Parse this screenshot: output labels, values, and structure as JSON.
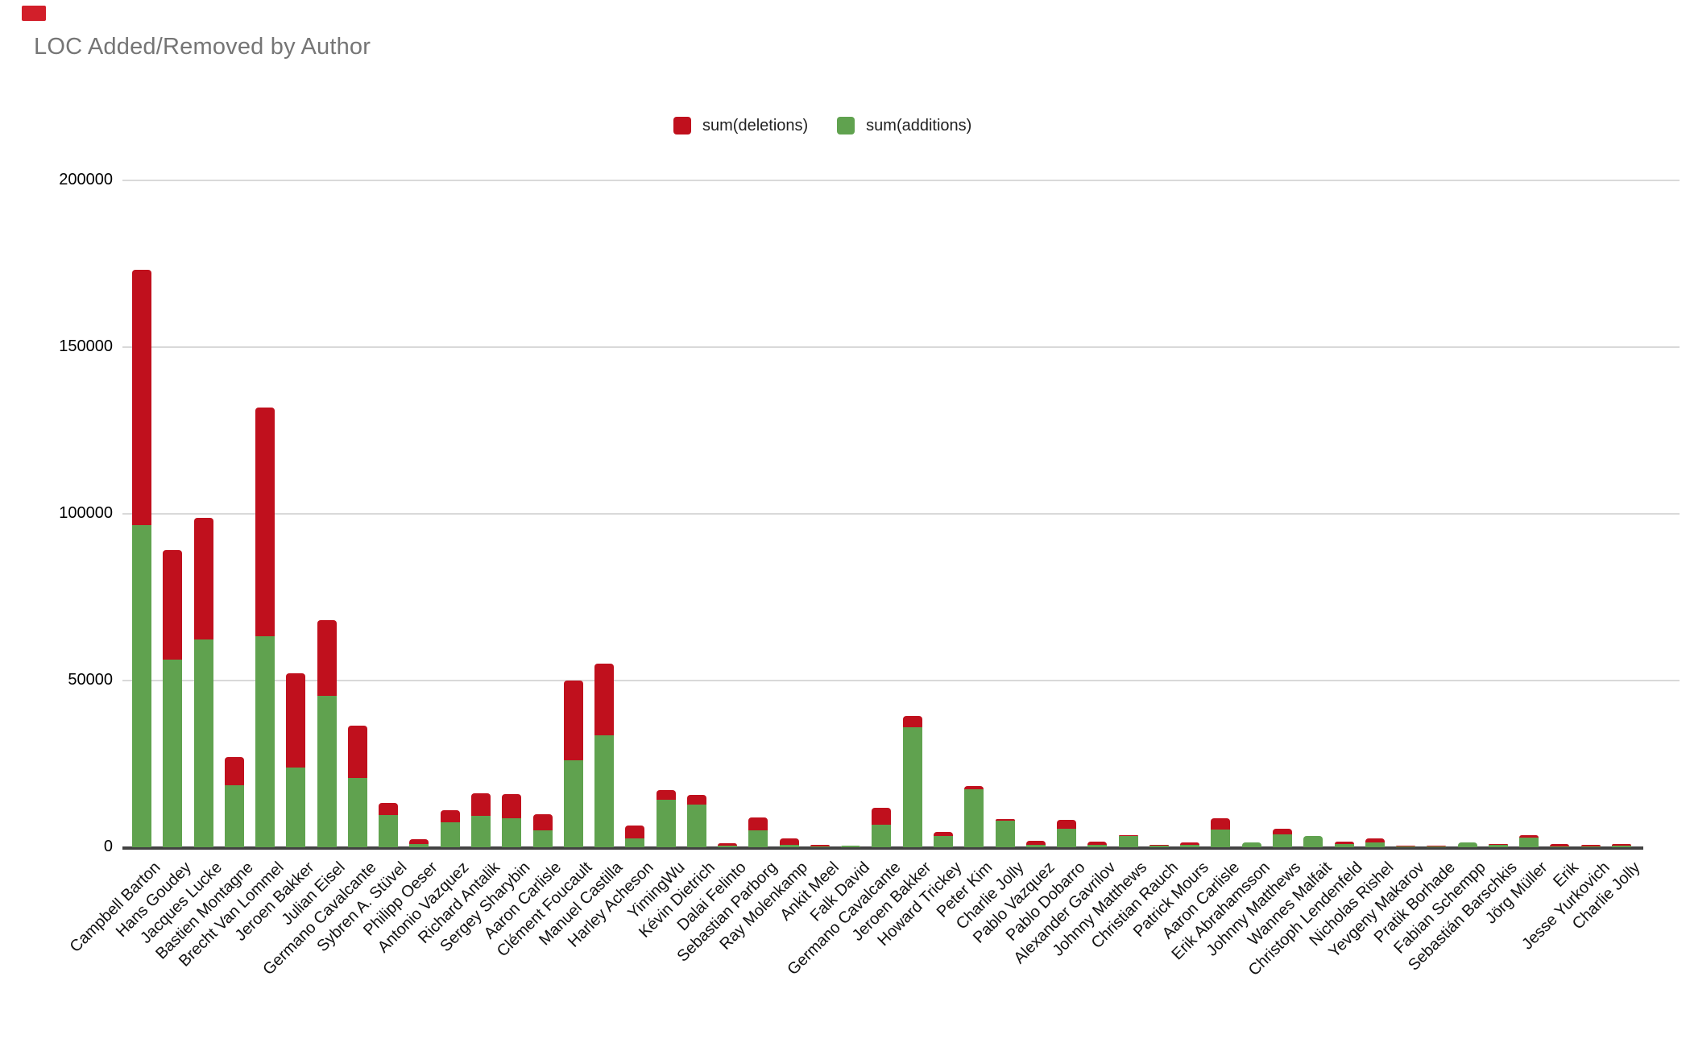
{
  "page": {
    "title": "LOC Added/Removed by Author"
  },
  "legend": [
    {
      "label": "sum(deletions)",
      "color": "#c0101d"
    },
    {
      "label": "sum(additions)",
      "color": "#60a24f"
    }
  ],
  "ui": {
    "corner_marker_color": "#d21f2a",
    "grid_color": "#d9d9d9",
    "axis_color": "#424242",
    "title_color": "#757575"
  },
  "chart_data": {
    "type": "bar",
    "subtype": "stacked-vertical",
    "title": "LOC Added/Removed by Author",
    "xlabel": "",
    "ylabel": "",
    "ylim": [
      0,
      200000
    ],
    "yticks": [
      0,
      50000,
      100000,
      150000,
      200000
    ],
    "grid": true,
    "legend_position": "top-center",
    "x_label_rotation": -45,
    "categories": [
      "Campbell Barton",
      "Hans Goudey",
      "Jacques Lucke",
      "Bastien Montagne",
      "Brecht Van Lommel",
      "Jeroen Bakker",
      "Julian Eisel",
      "Germano Cavalcante",
      "Sybren A. Stüvel",
      "Philipp Oeser",
      "Antonio Vazquez",
      "Richard Antalik",
      "Sergey Sharybin",
      "Aaron Carlisle",
      "Clément Foucault",
      "Manuel Castilla",
      "Harley Acheson",
      "YimingWu",
      "Kévin Dietrich",
      "Dalai Felinto",
      "Sebastian Parborg",
      "Ray Molenkamp",
      "Ankit Meel",
      "Falk David",
      "Germano Cavalcante",
      "Jeroen Bakker",
      "Howard Trickey",
      "Peter Kim",
      "Charlie Jolly",
      "Pablo Vazquez",
      "Pablo Dobarro",
      "Alexander Gavrilov",
      "Johnny Matthews",
      "Christian Rauch",
      "Patrick Mours",
      "Aaron Carlisle",
      "Erik Abrahamsson",
      "Johnny Matthews",
      "Wannes Malfait",
      "Christoph Lendenfeld",
      "Nicholas Rishel",
      "Yevgeny Makarov",
      "Pratik Borhade",
      "Fabian Schempp",
      "Sebastián Barschkis",
      "Jörg Müller",
      "Erik",
      "Jesse Yurkovich",
      "Charlie Jolly"
    ],
    "series": [
      {
        "name": "sum(additions)",
        "color": "#60a24f",
        "values": [
          96500,
          56200,
          62200,
          18500,
          63400,
          24000,
          45400,
          20700,
          9700,
          1000,
          7600,
          9400,
          8700,
          5100,
          26100,
          33600,
          2600,
          14300,
          12900,
          500,
          5000,
          700,
          300,
          400,
          6700,
          35900,
          3300,
          17500,
          7900,
          700,
          5500,
          650,
          3400,
          600,
          650,
          5300,
          1500,
          3900,
          3300,
          900,
          1400,
          100,
          100,
          1500,
          800,
          3000,
          300,
          100,
          400
        ]
      },
      {
        "name": "sum(deletions)",
        "color": "#c0101d",
        "values": [
          76500,
          32800,
          36500,
          8400,
          68700,
          28200,
          22600,
          15800,
          3600,
          1500,
          3700,
          6800,
          7200,
          4800,
          23800,
          21600,
          3900,
          2800,
          2900,
          800,
          3900,
          2000,
          600,
          0,
          5100,
          3400,
          1300,
          1000,
          400,
          1100,
          2600,
          1050,
          300,
          200,
          650,
          3500,
          0,
          1600,
          0,
          800,
          1200,
          300,
          100,
          0,
          100,
          700,
          700,
          500,
          600
        ]
      }
    ]
  }
}
